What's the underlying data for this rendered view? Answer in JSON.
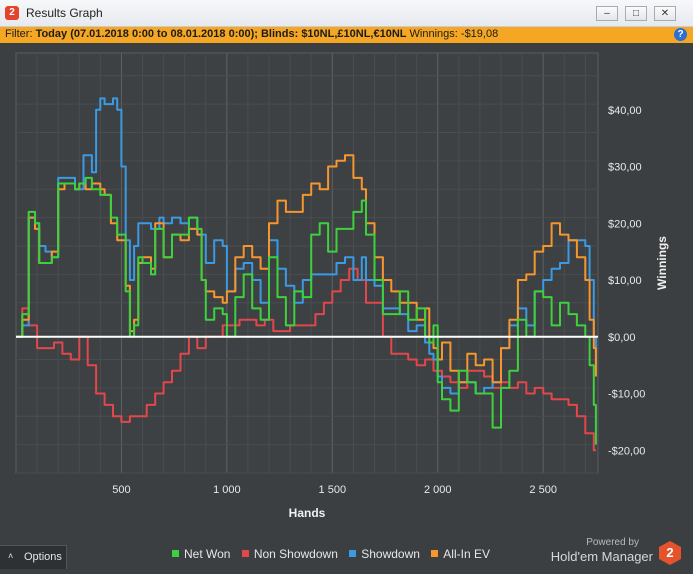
{
  "window": {
    "title": "Results Graph",
    "logo_text": "2",
    "minimize_glyph": "–",
    "maximize_glyph": "□",
    "close_glyph": "✕"
  },
  "filter": {
    "prefix": "Filter: ",
    "text": "Today (07.01.2018 0:00 to 08.01.2018 0:00); Blinds: $10NL,£10NL,€10NL",
    "winnings_label": "Winnings: -$19,08",
    "help_glyph": "?"
  },
  "footer": {
    "options_label": "Options",
    "options_glyph": "˄",
    "powered_by": "Powered by",
    "brand_name": "Hold'em Manager",
    "brand_logo_text": "2"
  },
  "colors": {
    "background": "#3c3f41",
    "grid": "#55585b",
    "zero_line": "#ffffff",
    "net_won": "#3ed13e",
    "non_showdown": "#e2474b",
    "showdown": "#3a9ae3",
    "all_in_ev": "#f5962e",
    "filter_bar": "#f5a623"
  },
  "chart_data": {
    "type": "line",
    "xlabel": "Hands",
    "ylabel": "Winnings",
    "xlim": [
      0,
      2760
    ],
    "ylim": [
      -24,
      50
    ],
    "x_ticks": [
      500,
      1000,
      1500,
      2000,
      2500
    ],
    "x_tick_labels": [
      "500",
      "1 000",
      "1 500",
      "2 000",
      "2 500"
    ],
    "y_ticks": [
      -20,
      -10,
      0,
      10,
      20,
      30,
      40
    ],
    "y_tick_labels": [
      "-$20,00",
      "-$10,00",
      "$0,00",
      "$10,00",
      "$20,00",
      "$30,00",
      "$40,00"
    ],
    "grid": true,
    "legend_position": "bottom",
    "series": [
      {
        "name": "Net Won",
        "color_key": "net_won",
        "x": [
          0,
          30,
          60,
          90,
          110,
          140,
          170,
          200,
          230,
          280,
          300,
          330,
          360,
          400,
          420,
          450,
          480,
          500,
          520,
          540,
          560,
          580,
          600,
          640,
          660,
          700,
          740,
          780,
          820,
          860,
          880,
          900,
          940,
          980,
          1000,
          1040,
          1080,
          1120,
          1160,
          1200,
          1240,
          1280,
          1320,
          1360,
          1400,
          1440,
          1480,
          1520,
          1560,
          1600,
          1640,
          1660,
          1700,
          1740,
          1780,
          1820,
          1860,
          1900,
          1940,
          1960,
          1980,
          2000,
          2020,
          2060,
          2100,
          2140,
          2180,
          2220,
          2260,
          2300,
          2340,
          2380,
          2420,
          2460,
          2500,
          2540,
          2580,
          2620,
          2660,
          2700,
          2720,
          2740,
          2750
        ],
        "y": [
          0,
          4,
          22,
          20,
          13,
          13,
          14,
          27,
          27,
          26,
          27,
          28,
          26,
          25,
          25,
          21,
          18,
          18,
          8,
          0,
          2,
          14,
          13,
          11,
          19,
          14,
          18,
          18,
          21,
          19,
          10,
          3,
          5,
          4,
          0,
          7,
          11,
          5,
          3,
          14,
          7,
          2,
          8,
          7,
          18,
          20,
          15,
          19,
          19,
          22,
          24,
          18,
          10,
          4,
          4,
          8,
          3,
          5,
          0,
          -1,
          2,
          -8,
          -11,
          -13,
          -6,
          -8,
          -10,
          -10,
          -16,
          -9,
          -6,
          3,
          0,
          8,
          7,
          2,
          6,
          4,
          2,
          0,
          -5,
          -12,
          -19
        ]
      },
      {
        "name": "Non Showdown",
        "color_key": "non_showdown",
        "x": [
          0,
          30,
          60,
          100,
          140,
          180,
          220,
          260,
          300,
          340,
          380,
          420,
          460,
          500,
          540,
          580,
          620,
          660,
          700,
          740,
          780,
          820,
          860,
          900,
          940,
          980,
          1020,
          1060,
          1100,
          1140,
          1180,
          1220,
          1260,
          1300,
          1340,
          1380,
          1420,
          1460,
          1500,
          1540,
          1580,
          1620,
          1660,
          1700,
          1740,
          1780,
          1820,
          1860,
          1900,
          1940,
          1980,
          2020,
          2060,
          2100,
          2140,
          2180,
          2220,
          2260,
          2300,
          2340,
          2380,
          2420,
          2460,
          2500,
          2540,
          2580,
          2620,
          2660,
          2700,
          2740,
          2750
        ],
        "y": [
          0,
          5,
          2,
          -2,
          -2,
          -1,
          -3,
          -4,
          0,
          -5,
          -10,
          -12,
          -14,
          -15,
          -14,
          -14,
          -12,
          -10,
          -8,
          -6,
          -3,
          0,
          -2,
          0,
          0,
          2,
          2,
          3,
          3,
          2,
          3,
          1,
          1,
          2,
          2,
          2,
          4,
          6,
          8,
          10,
          12,
          10,
          6,
          6,
          0,
          -3,
          -3,
          -4,
          -5,
          -4,
          -6,
          -7,
          -8,
          -9,
          -6,
          -6,
          -7,
          -9,
          -8,
          -9,
          -8,
          -10,
          -9,
          -10,
          -11,
          -11,
          -12,
          -14,
          -17,
          -20,
          -20
        ]
      },
      {
        "name": "Showdown",
        "color_key": "showdown",
        "x": [
          0,
          30,
          60,
          90,
          110,
          140,
          170,
          200,
          230,
          280,
          320,
          360,
          380,
          400,
          420,
          460,
          480,
          500,
          520,
          540,
          560,
          580,
          600,
          640,
          680,
          700,
          740,
          780,
          820,
          860,
          880,
          900,
          940,
          980,
          1000,
          1040,
          1080,
          1120,
          1160,
          1200,
          1240,
          1280,
          1320,
          1360,
          1400,
          1440,
          1480,
          1520,
          1560,
          1600,
          1640,
          1660,
          1700,
          1740,
          1780,
          1820,
          1860,
          1900,
          1940,
          1960,
          1980,
          2000,
          2020,
          2060,
          2100,
          2140,
          2180,
          2220,
          2260,
          2300,
          2340,
          2380,
          2420,
          2460,
          2500,
          2540,
          2580,
          2620,
          2660,
          2700,
          2720,
          2740,
          2750
        ],
        "y": [
          0,
          2,
          21,
          20,
          16,
          15,
          14,
          28,
          28,
          26,
          32,
          29,
          40,
          42,
          41,
          42,
          40,
          30,
          17,
          10,
          16,
          20,
          20,
          19,
          21,
          20,
          21,
          20,
          21,
          18,
          18,
          13,
          17,
          16,
          8,
          12,
          13,
          10,
          6,
          17,
          12,
          9,
          6,
          10,
          11,
          11,
          11,
          13,
          14,
          10,
          14,
          10,
          9,
          5,
          5,
          4,
          1,
          2,
          -1,
          -3,
          -4,
          -7,
          -9,
          -10,
          -8,
          -8,
          -10,
          -9,
          -8,
          -2,
          2,
          5,
          2,
          8,
          10,
          12,
          13,
          17,
          17,
          16,
          10,
          0,
          -7
        ]
      },
      {
        "name": "All-In EV",
        "color_key": "all_in_ev",
        "x": [
          0,
          30,
          60,
          90,
          110,
          140,
          170,
          200,
          230,
          280,
          300,
          330,
          360,
          400,
          420,
          450,
          480,
          500,
          520,
          540,
          560,
          580,
          600,
          640,
          660,
          700,
          740,
          780,
          820,
          860,
          880,
          900,
          940,
          980,
          1000,
          1040,
          1080,
          1120,
          1160,
          1200,
          1240,
          1280,
          1320,
          1360,
          1400,
          1440,
          1480,
          1520,
          1560,
          1600,
          1640,
          1660,
          1700,
          1740,
          1780,
          1820,
          1860,
          1900,
          1940,
          1960,
          1980,
          2000,
          2020,
          2060,
          2100,
          2140,
          2180,
          2220,
          2260,
          2300,
          2340,
          2380,
          2420,
          2460,
          2500,
          2540,
          2580,
          2620,
          2660,
          2700,
          2720,
          2740,
          2750
        ],
        "y": [
          0,
          3,
          21,
          19,
          13,
          13,
          15,
          26,
          27,
          26,
          27,
          26,
          27,
          26,
          25,
          20,
          17,
          17,
          9,
          1,
          3,
          13,
          14,
          12,
          20,
          14,
          18,
          17,
          19,
          18,
          10,
          8,
          7,
          6,
          8,
          14,
          16,
          14,
          12,
          20,
          24,
          22,
          22,
          25,
          27,
          26,
          30,
          31,
          32,
          28,
          26,
          20,
          14,
          10,
          8,
          6,
          6,
          3,
          5,
          0,
          -2,
          -4,
          -1,
          -6,
          -8,
          -3,
          -5,
          -4,
          -8,
          -2,
          3,
          10,
          11,
          15,
          16,
          20,
          18,
          17,
          14,
          10,
          3,
          -2,
          -7
        ]
      }
    ]
  }
}
